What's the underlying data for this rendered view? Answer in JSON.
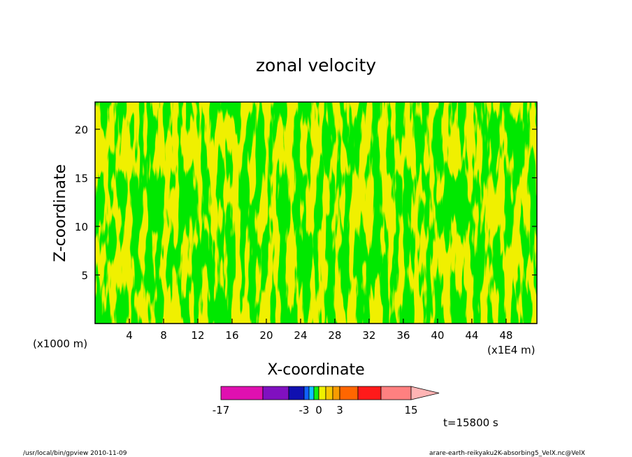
{
  "chart_data": {
    "type": "heatmap",
    "title": "zonal velocity",
    "xlabel": "X-coordinate",
    "ylabel": "Z-coordinate",
    "x_unit_label": "(x1E4 m)",
    "y_unit_label": "(x1000 m)",
    "xlim": [
      0,
      51.6
    ],
    "ylim": [
      0,
      22.8
    ],
    "x_ticks": [
      {
        "value": 4,
        "label": "4"
      },
      {
        "value": 8,
        "label": "8"
      },
      {
        "value": 12,
        "label": "12"
      },
      {
        "value": 16,
        "label": "16"
      },
      {
        "value": 20,
        "label": "20"
      },
      {
        "value": 24,
        "label": "24"
      },
      {
        "value": 28,
        "label": "28"
      },
      {
        "value": 32,
        "label": "32"
      },
      {
        "value": 36,
        "label": "36"
      },
      {
        "value": 40,
        "label": "40"
      },
      {
        "value": 44,
        "label": "44"
      },
      {
        "value": 48,
        "label": "48"
      }
    ],
    "y_ticks": [
      {
        "value": 5,
        "label": "5"
      },
      {
        "value": 10,
        "label": "10"
      },
      {
        "value": 15,
        "label": "15"
      },
      {
        "value": 20,
        "label": "20"
      }
    ],
    "colorbar": {
      "levels": [
        -17,
        -12,
        -8,
        -3,
        -2,
        -1,
        0,
        1,
        2,
        3,
        5,
        10,
        15
      ],
      "colors": [
        "#e010b0",
        "#8010c0",
        "#1010b0",
        "#1060ff",
        "#10c0ff",
        "#10f010",
        "#f0f000",
        "#f8c800",
        "#f89c00",
        "#ff6600",
        "#ff1a1a",
        "#ff8080"
      ],
      "labeled_ticks": [
        {
          "value": -17,
          "label": "-17"
        },
        {
          "value": -3,
          "label": "-3"
        },
        {
          "value": 0,
          "label": "0"
        },
        {
          "value": 3,
          "label": "3"
        },
        {
          "value": 15,
          "label": "15"
        }
      ],
      "extend": "max",
      "extend_color": "#ffb4b4"
    },
    "field_colors": {
      "negative": "#00e800",
      "positive": "#f0f000"
    }
  },
  "annotations": {
    "time": "t=15800 s",
    "footer_left": "/usr/local/bin/gpview  2010-11-09",
    "footer_right": "arare-earth-reikyaku2K-absorbing5_VelX.nc@VelX"
  }
}
